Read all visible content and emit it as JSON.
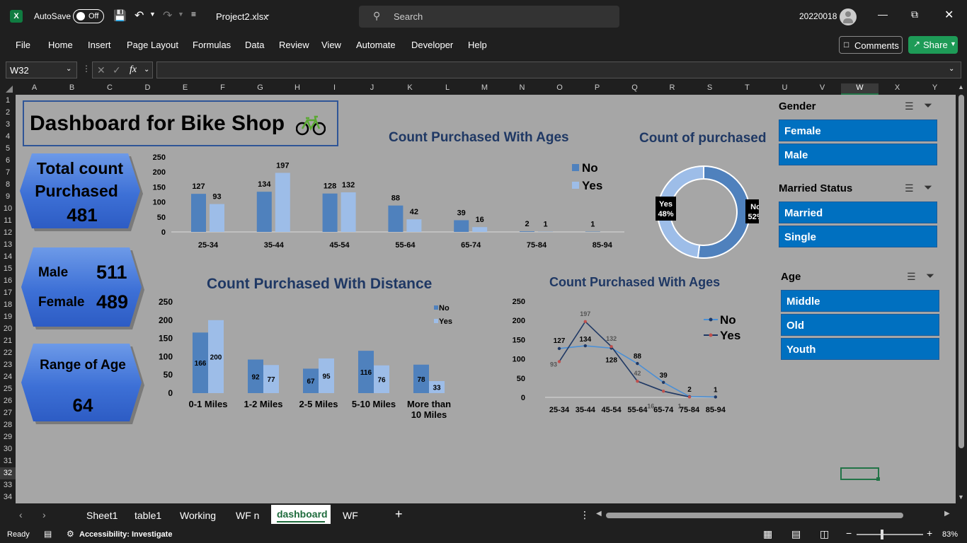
{
  "titlebar": {
    "autosave_label": "AutoSave",
    "autosave_state": "Off",
    "file_name": "Project2.xlsx",
    "search_placeholder": "Search",
    "user": "20220018"
  },
  "menu": [
    "File",
    "Home",
    "Insert",
    "Page Layout",
    "Formulas",
    "Data",
    "Review",
    "View",
    "Automate",
    "Developer",
    "Help"
  ],
  "ribbon_buttons": {
    "comments": "Comments",
    "share": "Share"
  },
  "formula_bar": {
    "name_box": "W32",
    "fx": "fx",
    "formula": ""
  },
  "columns": [
    "A",
    "B",
    "C",
    "D",
    "E",
    "F",
    "G",
    "H",
    "I",
    "J",
    "K",
    "L",
    "M",
    "N",
    "O",
    "P",
    "Q",
    "R",
    "S",
    "T",
    "U",
    "V",
    "W",
    "X",
    "Y"
  ],
  "rows": [
    "1",
    "2",
    "3",
    "4",
    "5",
    "6",
    "7",
    "8",
    "9",
    "10",
    "11",
    "12",
    "13",
    "14",
    "15",
    "16",
    "17",
    "18",
    "19",
    "20",
    "21",
    "22",
    "23",
    "24",
    "25",
    "26",
    "27",
    "28",
    "29",
    "30",
    "31",
    "32",
    "33",
    "34"
  ],
  "dashboard": {
    "title": "Dashboard for Bike Shop",
    "kpi_total": {
      "line1": "Total count",
      "line2": "Purchased",
      "value": "481"
    },
    "kpi_gender": {
      "male_label": "Male",
      "male_value": "511",
      "female_label": "Female",
      "female_value": "489"
    },
    "kpi_age": {
      "label": "Range of Age",
      "value": "64"
    }
  },
  "chart_data": [
    {
      "type": "bar",
      "title": "Count Purchased With Ages",
      "categories": [
        "25-34",
        "35-44",
        "45-54",
        "55-64",
        "65-74",
        "75-84",
        "85-94"
      ],
      "series": [
        {
          "name": "No",
          "values": [
            127,
            134,
            128,
            88,
            39,
            2,
            1
          ]
        },
        {
          "name": "Yes",
          "values": [
            93,
            197,
            132,
            42,
            16,
            1,
            0
          ]
        }
      ],
      "yticks": [
        "250",
        "200",
        "150",
        "100",
        "50",
        "0"
      ],
      "ylim": [
        0,
        250
      ],
      "legend": "top-right",
      "colors": {
        "No": "#4f81bd",
        "Yes": "#9dbde8"
      }
    },
    {
      "type": "pie",
      "title": "Count of purchased",
      "slices": [
        {
          "name": "No",
          "value": 52,
          "label": "No 52%"
        },
        {
          "name": "Yes",
          "value": 48,
          "label": "Yes 48%"
        }
      ],
      "colors": {
        "No": "#4f81bd",
        "Yes": "#9dbde8"
      }
    },
    {
      "type": "bar",
      "title": "Count Purchased With Distance",
      "categories": [
        "0-1 Miles",
        "1-2 Miles",
        "2-5 Miles",
        "5-10 Miles",
        "More than 10 Miles"
      ],
      "series": [
        {
          "name": "No",
          "values": [
            166,
            92,
            67,
            116,
            78
          ]
        },
        {
          "name": "Yes",
          "values": [
            200,
            77,
            95,
            76,
            33
          ]
        }
      ],
      "yticks": [
        "250",
        "200",
        "150",
        "100",
        "50",
        "0"
      ],
      "ylim": [
        0,
        250
      ],
      "legend": "top-right",
      "colors": {
        "No": "#4f81bd",
        "Yes": "#9dbde8"
      }
    },
    {
      "type": "line",
      "title": "Count Purchased With Ages",
      "categories": [
        "25-34",
        "35-44",
        "45-54",
        "55-64",
        "65-74",
        "75-84",
        "85-94"
      ],
      "series": [
        {
          "name": "No",
          "values": [
            127,
            134,
            128,
            88,
            39,
            2,
            1
          ]
        },
        {
          "name": "Yes",
          "values": [
            93,
            197,
            132,
            42,
            16,
            1,
            null
          ]
        }
      ],
      "yticks": [
        "250",
        "200",
        "150",
        "100",
        "50",
        "0"
      ],
      "ylim": [
        0,
        250
      ],
      "legend": "top-right",
      "colors": {
        "No": "#4a8fd6",
        "Yes": "#1f3864"
      }
    }
  ],
  "slicers": [
    {
      "title": "Gender",
      "items": [
        "Female",
        "Male"
      ]
    },
    {
      "title": "Married Status",
      "items": [
        "Married",
        "Single"
      ]
    },
    {
      "title": "Age",
      "items": [
        "Middle",
        "Old",
        "Youth"
      ]
    }
  ],
  "tabs": [
    "Sheet1",
    "table1",
    "Working",
    "WF n",
    "dashboard",
    "WF"
  ],
  "active_tab": "dashboard",
  "status": {
    "ready": "Ready",
    "accessibility": "Accessibility: Investigate",
    "zoom": "83%"
  }
}
